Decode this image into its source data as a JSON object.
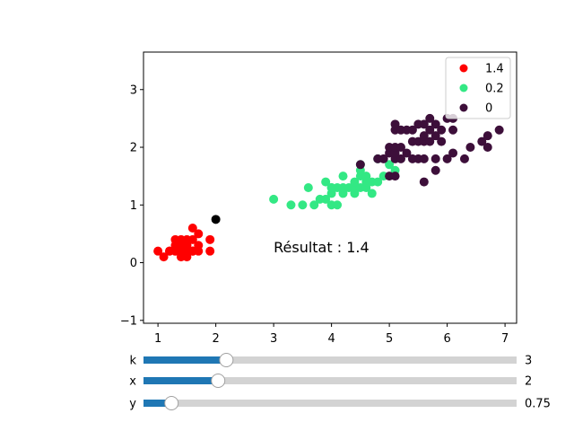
{
  "chart_data": {
    "type": "scatter",
    "xlim": [
      0.75,
      7.2
    ],
    "ylim": [
      -1.05,
      3.65
    ],
    "xticks": [
      1,
      2,
      3,
      4,
      5,
      6,
      7
    ],
    "yticks": [
      -1,
      0,
      1,
      2,
      3
    ],
    "grid": false,
    "legend_placement": "top-right",
    "annotation": {
      "text": "Résultat : 1.4",
      "x": 3.0,
      "y": 0.18
    },
    "query_point": {
      "x": 2.0,
      "y": 0.75,
      "color": "#000000"
    },
    "series": [
      {
        "name": "1.4",
        "color": "#ff0000",
        "points": [
          [
            1.0,
            0.2
          ],
          [
            1.1,
            0.1
          ],
          [
            1.2,
            0.2
          ],
          [
            1.3,
            0.2
          ],
          [
            1.3,
            0.4
          ],
          [
            1.4,
            0.2
          ],
          [
            1.4,
            0.3
          ],
          [
            1.4,
            0.1
          ],
          [
            1.5,
            0.2
          ],
          [
            1.5,
            0.1
          ],
          [
            1.5,
            0.4
          ],
          [
            1.6,
            0.2
          ],
          [
            1.6,
            0.4
          ],
          [
            1.7,
            0.5
          ],
          [
            1.9,
            0.2
          ],
          [
            1.5,
            0.3
          ],
          [
            1.4,
            0.2
          ],
          [
            1.3,
            0.3
          ],
          [
            1.7,
            0.3
          ],
          [
            1.6,
            0.6
          ],
          [
            1.9,
            0.4
          ],
          [
            1.2,
            0.2
          ],
          [
            1.5,
            0.2
          ],
          [
            1.6,
            0.2
          ],
          [
            1.7,
            0.2
          ],
          [
            1.4,
            0.4
          ],
          [
            1.5,
            0.3
          ],
          [
            1.3,
            0.2
          ],
          [
            1.6,
            0.2
          ]
        ]
      },
      {
        "name": "0.2",
        "color": "#33e884",
        "points": [
          [
            3.0,
            1.1
          ],
          [
            3.3,
            1.0
          ],
          [
            3.5,
            1.0
          ],
          [
            3.6,
            1.3
          ],
          [
            3.7,
            1.0
          ],
          [
            3.8,
            1.1
          ],
          [
            3.9,
            1.1
          ],
          [
            3.9,
            1.4
          ],
          [
            4.0,
            1.0
          ],
          [
            4.0,
            1.2
          ],
          [
            4.0,
            1.3
          ],
          [
            4.1,
            1.3
          ],
          [
            4.1,
            1.0
          ],
          [
            4.2,
            1.2
          ],
          [
            4.2,
            1.3
          ],
          [
            4.2,
            1.5
          ],
          [
            4.3,
            1.3
          ],
          [
            4.4,
            1.2
          ],
          [
            4.4,
            1.3
          ],
          [
            4.4,
            1.4
          ],
          [
            4.5,
            1.3
          ],
          [
            4.5,
            1.5
          ],
          [
            4.5,
            1.6
          ],
          [
            4.6,
            1.3
          ],
          [
            4.6,
            1.4
          ],
          [
            4.6,
            1.5
          ],
          [
            4.7,
            1.2
          ],
          [
            4.7,
            1.4
          ],
          [
            4.8,
            1.4
          ],
          [
            4.8,
            1.8
          ],
          [
            4.9,
            1.5
          ],
          [
            5.0,
            1.7
          ],
          [
            5.1,
            1.6
          ],
          [
            4.5,
            1.7
          ],
          [
            4.0,
            1.3
          ]
        ]
      },
      {
        "name": "0",
        "color": "#3d0f3a",
        "points": [
          [
            4.5,
            1.7
          ],
          [
            4.8,
            1.8
          ],
          [
            4.9,
            1.8
          ],
          [
            5.0,
            1.5
          ],
          [
            5.0,
            1.9
          ],
          [
            5.0,
            2.0
          ],
          [
            5.1,
            1.5
          ],
          [
            5.1,
            1.8
          ],
          [
            5.1,
            1.9
          ],
          [
            5.1,
            2.0
          ],
          [
            5.1,
            2.3
          ],
          [
            5.1,
            2.4
          ],
          [
            5.2,
            2.0
          ],
          [
            5.2,
            2.3
          ],
          [
            5.3,
            1.9
          ],
          [
            5.3,
            2.3
          ],
          [
            5.4,
            2.1
          ],
          [
            5.4,
            2.3
          ],
          [
            5.5,
            1.8
          ],
          [
            5.5,
            2.1
          ],
          [
            5.6,
            1.8
          ],
          [
            5.6,
            2.1
          ],
          [
            5.6,
            2.2
          ],
          [
            5.6,
            2.4
          ],
          [
            5.7,
            2.1
          ],
          [
            5.7,
            2.3
          ],
          [
            5.7,
            2.5
          ],
          [
            5.8,
            1.6
          ],
          [
            5.8,
            1.8
          ],
          [
            5.8,
            2.2
          ],
          [
            5.9,
            2.1
          ],
          [
            5.9,
            2.3
          ],
          [
            6.0,
            1.8
          ],
          [
            6.0,
            2.5
          ],
          [
            6.1,
            1.9
          ],
          [
            6.1,
            2.3
          ],
          [
            6.1,
            2.5
          ],
          [
            6.3,
            1.8
          ],
          [
            6.4,
            2.0
          ],
          [
            6.6,
            2.1
          ],
          [
            6.7,
            2.0
          ],
          [
            6.7,
            2.2
          ],
          [
            6.9,
            2.3
          ],
          [
            5.6,
            1.4
          ],
          [
            5.4,
            1.8
          ],
          [
            5.8,
            2.4
          ],
          [
            5.5,
            2.4
          ],
          [
            5.2,
            1.8
          ]
        ]
      }
    ],
    "sliders": [
      {
        "name": "k",
        "value": 3,
        "value_label": "3",
        "fraction": 0.222
      },
      {
        "name": "x",
        "value": 2,
        "value_label": "2",
        "fraction": 0.2
      },
      {
        "name": "y",
        "value": 0.75,
        "value_label": "0.75",
        "fraction": 0.075
      }
    ]
  },
  "colors": {
    "slider_fill": "#1f77b4",
    "slider_track": "#d3d3d3",
    "handle_fill": "#ffffff",
    "handle_stroke": "#a0a0a0"
  }
}
